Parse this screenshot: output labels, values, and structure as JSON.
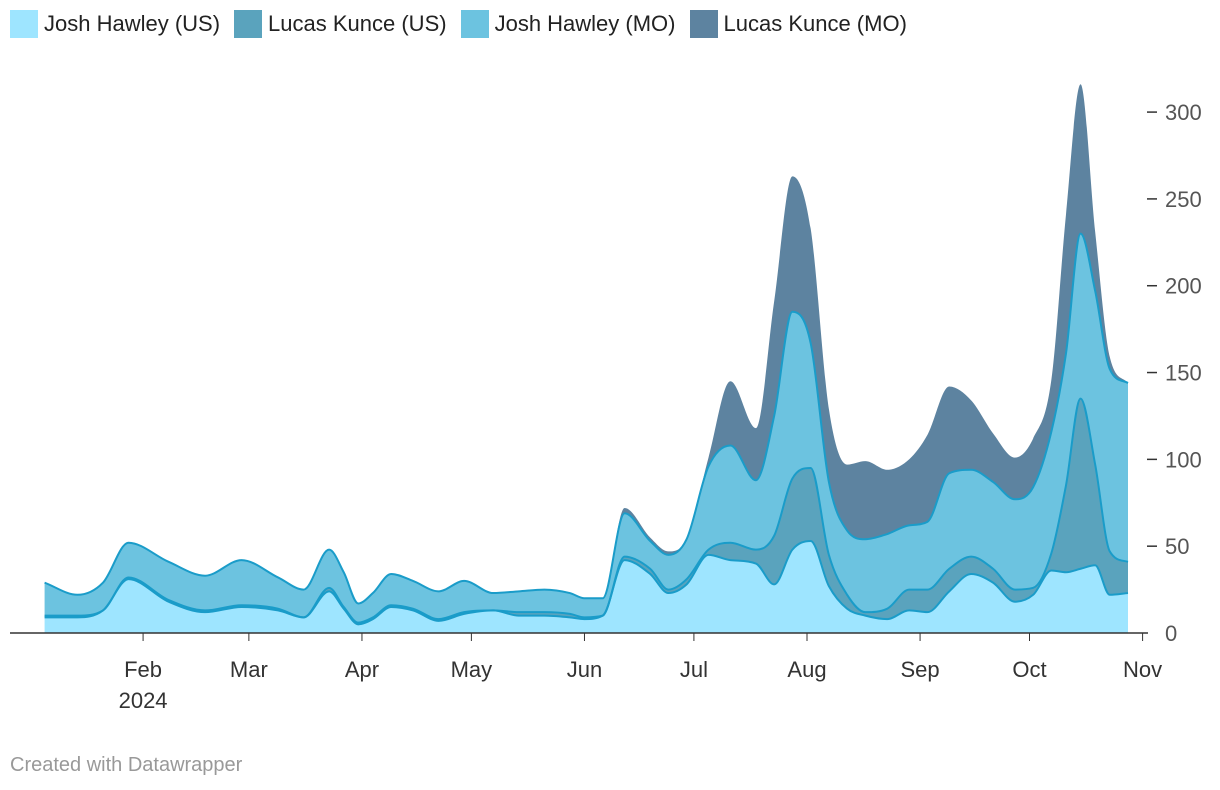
{
  "chart_data": {
    "type": "area",
    "stacked": true,
    "smooth": true,
    "x_axis": {
      "ticks": [
        {
          "label": "Feb",
          "sublabel": "2024",
          "pos": 31
        },
        {
          "label": "Mar",
          "pos": 60
        },
        {
          "label": "Apr",
          "pos": 91
        },
        {
          "label": "May",
          "pos": 121
        },
        {
          "label": "Jun",
          "pos": 152
        },
        {
          "label": "Jul",
          "pos": 182
        },
        {
          "label": "Aug",
          "pos": 213
        },
        {
          "label": "Sep",
          "pos": 244
        },
        {
          "label": "Oct",
          "pos": 274
        },
        {
          "label": "Nov",
          "pos": 305
        }
      ],
      "range": [
        0,
        301
      ]
    },
    "y_axis": {
      "ticks": [
        0,
        50,
        100,
        150,
        200,
        250,
        300
      ],
      "range": [
        0,
        330
      ],
      "position": "right"
    },
    "x": [
      4,
      13,
      20,
      27,
      38,
      48,
      58,
      68,
      75,
      82,
      86,
      90,
      94,
      99,
      105,
      112,
      119,
      127,
      134,
      141,
      148,
      152,
      157,
      163,
      170,
      175,
      180,
      186,
      192,
      199,
      204,
      209,
      214,
      219,
      224,
      229,
      235,
      241,
      246,
      252,
      258,
      264,
      270,
      275,
      280,
      284,
      288,
      292,
      296,
      301
    ],
    "series": [
      {
        "name": "Josh Hawley (US)",
        "color": "#9ee5ff",
        "values": [
          9,
          9,
          13,
          31,
          18,
          12,
          15,
          13,
          9,
          24,
          14,
          5,
          8,
          15,
          13,
          7,
          11,
          13,
          10,
          10,
          9,
          8,
          10,
          42,
          34,
          23,
          28,
          45,
          42,
          40,
          28,
          48,
          53,
          27,
          14,
          10,
          8,
          13,
          12,
          24,
          34,
          29,
          18,
          22,
          36,
          35,
          37,
          39,
          22,
          23
        ]
      },
      {
        "name": "Lucas Kunce (US)",
        "color": "#5aa3bd",
        "values": [
          1,
          1,
          0,
          1,
          1,
          1,
          1,
          1,
          0,
          2,
          1,
          1,
          1,
          1,
          1,
          1,
          1,
          0,
          2,
          2,
          2,
          1,
          0,
          2,
          3,
          2,
          3,
          3,
          10,
          8,
          28,
          41,
          42,
          18,
          8,
          2,
          6,
          12,
          13,
          13,
          10,
          8,
          7,
          4,
          10,
          50,
          98,
          58,
          25,
          18
        ]
      },
      {
        "name": "Josh Hawley (MO)",
        "color": "#6cc3e0",
        "values": [
          19,
          12,
          16,
          20,
          22,
          20,
          26,
          18,
          16,
          22,
          20,
          11,
          14,
          18,
          16,
          16,
          18,
          10,
          12,
          13,
          12,
          11,
          10,
          25,
          16,
          20,
          23,
          48,
          56,
          40,
          69,
          96,
          72,
          42,
          37,
          42,
          43,
          37,
          39,
          55,
          50,
          50,
          52,
          58,
          70,
          76,
          95,
          100,
          105,
          103
        ]
      },
      {
        "name": "Lucas Kunce (MO)",
        "color": "#5d83a0",
        "values": [
          0,
          0,
          0,
          0,
          0,
          0,
          0,
          0,
          0,
          0,
          0,
          0,
          0,
          0,
          0,
          0,
          0,
          0,
          0,
          0,
          0,
          0,
          0,
          3,
          2,
          2,
          0,
          5,
          37,
          30,
          66,
          78,
          66,
          42,
          38,
          45,
          37,
          38,
          50,
          50,
          40,
          28,
          24,
          28,
          30,
          80,
          86,
          34,
          7,
          0
        ]
      }
    ],
    "legend_position": "top-left",
    "grid": false
  },
  "footer": {
    "credit": "Created with Datawrapper"
  }
}
